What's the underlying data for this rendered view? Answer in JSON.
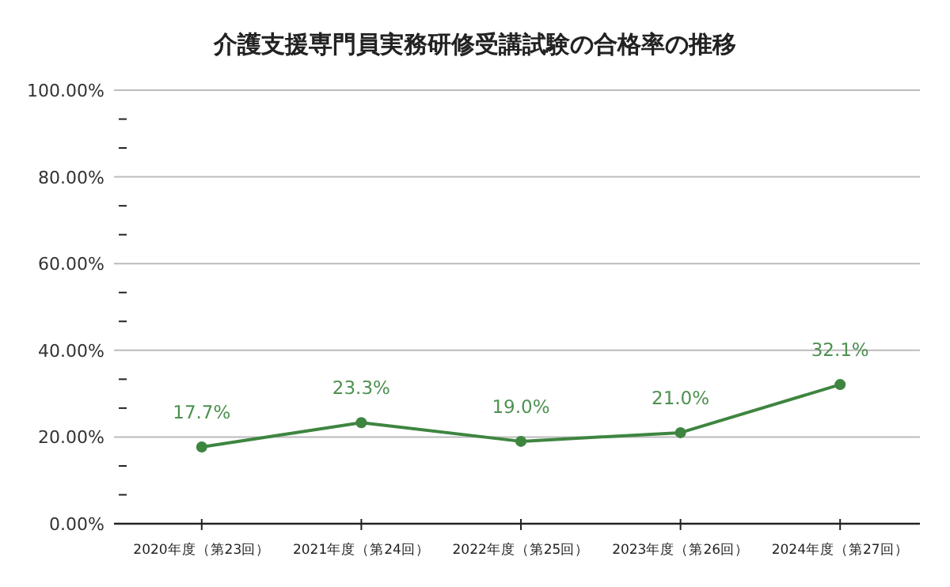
{
  "chart_data": {
    "type": "line",
    "title": "介護支援専門員実務研修受講試験の合格率の推移",
    "categories": [
      "2020年度（第23回）",
      "2021年度（第24回）",
      "2022年度（第25回）",
      "2023年度（第26回）",
      "2024年度（第27回）"
    ],
    "series": [
      {
        "color": "#3e8540",
        "values": [
          17.7,
          23.3,
          19.0,
          21.0,
          32.1
        ],
        "value_labels": [
          "17.7%",
          "23.3%",
          "19.0%",
          "21.0%",
          "32.1%"
        ]
      }
    ],
    "ylim": [
      0,
      100
    ],
    "yticks": [
      {
        "value": 0,
        "label": "0.00%"
      },
      {
        "value": 6.67,
        "label": null
      },
      {
        "value": 13.33,
        "label": null
      },
      {
        "value": 20,
        "label": "20.00%"
      },
      {
        "value": 26.67,
        "label": null
      },
      {
        "value": 33.33,
        "label": null
      },
      {
        "value": 40,
        "label": "40.00%"
      },
      {
        "value": 46.67,
        "label": null
      },
      {
        "value": 53.33,
        "label": null
      },
      {
        "value": 60,
        "label": "60.00%"
      },
      {
        "value": 66.67,
        "label": null
      },
      {
        "value": 73.33,
        "label": null
      },
      {
        "value": 80,
        "label": "80.00%"
      },
      {
        "value": 86.67,
        "label": null
      },
      {
        "value": 93.33,
        "label": null
      },
      {
        "value": 100,
        "label": "100.00%"
      }
    ],
    "grid": "y",
    "marker": "circle",
    "line_style": "solid"
  }
}
